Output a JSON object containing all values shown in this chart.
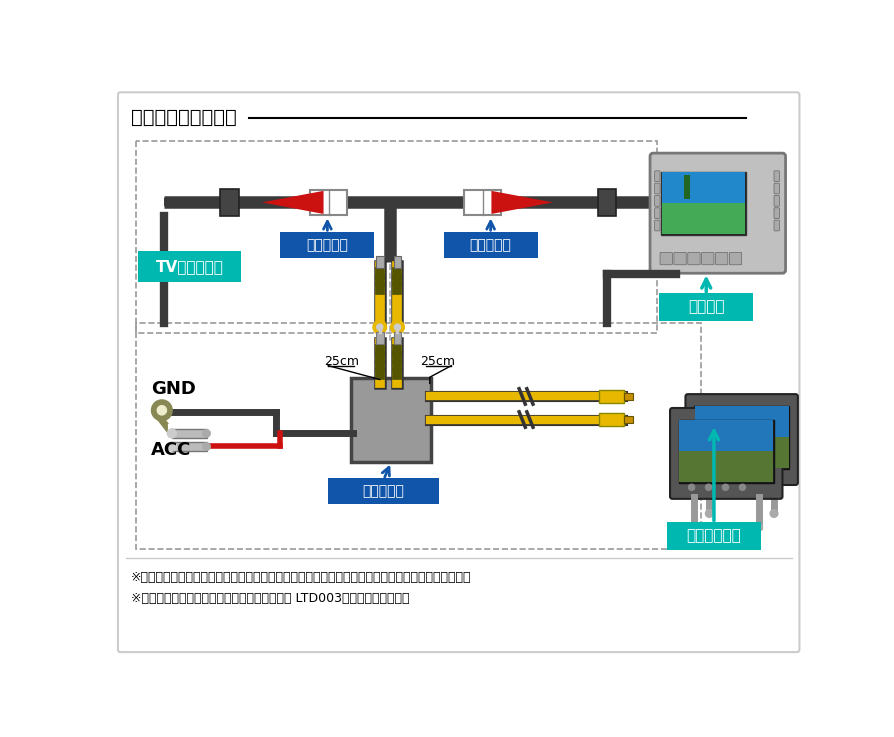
{
  "title": "ビデオ出力ハーネス",
  "note1": "※増設用モニター及び延長用ピン端子ケーブル等は付属しておりませんので、別途ご用意ください。",
  "note2": "※３台以上増設する場合は、７出力映像分配器 LTD003をご用意ください。",
  "label_tv": "TVチューナー",
  "label_connector1": "コネクター",
  "label_connector2": "コネクター",
  "label_navi": "純正ナビ",
  "label_dist": "映像分配器",
  "label_monitor": "増設モニター",
  "label_gnd": "GND",
  "label_acc": "ACC",
  "label_25cm_left": "25cm",
  "label_25cm_right": "25cm",
  "teal_color": "#00b8b0",
  "blue_color": "#1155aa",
  "red_color": "#cc1111",
  "dark_gray": "#3a3a3a",
  "mid_gray": "#888888",
  "light_gray": "#bbbbbb",
  "yellow": "#e8b800",
  "yellow_dark": "#c89000",
  "box_bg": "white"
}
